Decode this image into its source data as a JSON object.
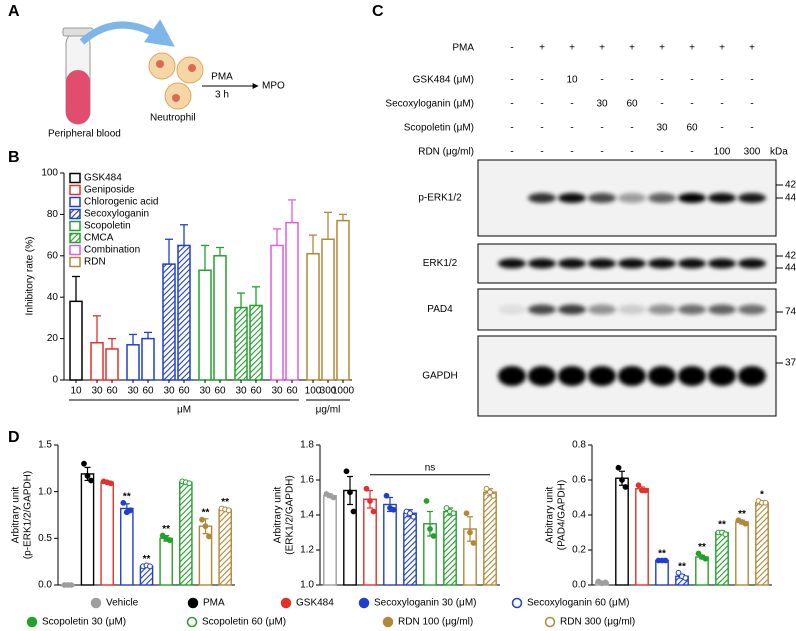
{
  "panel_A": {
    "letter": "A",
    "source": "Peripheral blood",
    "cell": "Neutrophil",
    "stimulus": "PMA",
    "time": "3 h",
    "readout": "MPO"
  },
  "panel_B_letter": "B",
  "panel_D_letter": "D",
  "panel_C": {
    "letter": "C",
    "treatments": [
      {
        "label": "PMA",
        "cells": [
          "-",
          "+",
          "+",
          "+",
          "+",
          "+",
          "+",
          "+",
          "+"
        ]
      },
      {
        "label": "GSK484 (μM)",
        "cells": [
          "-",
          "-",
          "10",
          "-",
          "-",
          "-",
          "-",
          "-",
          "-"
        ]
      },
      {
        "label": "Secoxyloganin (μM)",
        "cells": [
          "-",
          "-",
          "-",
          "30",
          "60",
          "-",
          "-",
          "-",
          "-"
        ]
      },
      {
        "label": "Scopoletin (μM)",
        "cells": [
          "-",
          "-",
          "-",
          "-",
          "-",
          "30",
          "60",
          "-",
          "-"
        ]
      },
      {
        "label": "RDN (μg/ml)",
        "cells": [
          "-",
          "-",
          "-",
          "-",
          "-",
          "-",
          "-",
          "100",
          "300"
        ]
      }
    ],
    "kda": "kDa",
    "blots": [
      {
        "label": "p-ERK1/2",
        "markers": [
          "42",
          "44"
        ]
      },
      {
        "label": "ERK1/2",
        "markers": [
          "42",
          "44"
        ]
      },
      {
        "label": "PAD4",
        "markers": [
          "74"
        ]
      },
      {
        "label": "GAPDH",
        "markers": [
          "37"
        ]
      }
    ]
  },
  "panel_D_legend": [
    {
      "name": "Vehicle",
      "color": "#9e9e9e",
      "marker": "filled"
    },
    {
      "name": "PMA",
      "color": "#000000",
      "marker": "filled"
    },
    {
      "name": "GSK484",
      "color": "#e3302a",
      "marker": "filled"
    },
    {
      "name": "Secoxyloganin 30 (μM)",
      "color": "#1f3fcf",
      "marker": "filled"
    },
    {
      "name": "Secoxyloganin 60 (μM)",
      "color": "#1f3fcf",
      "marker": "open"
    },
    {
      "name": "Scopoletin 30 (μM)",
      "color": "#24a02c",
      "marker": "filled"
    },
    {
      "name": "Scopoletin 60 (μM)",
      "color": "#24a02c",
      "marker": "open"
    },
    {
      "name": "RDN 100 (μg/ml)",
      "color": "#b08838",
      "marker": "filled"
    },
    {
      "name": "RDN 300 (μg/ml)",
      "color": "#b08838",
      "marker": "open"
    }
  ],
  "chart_data": [
    {
      "type": "bar",
      "ylabel": "Inhibitory rate (%)",
      "ylim": [
        0,
        100
      ],
      "yticks": [
        0,
        20,
        40,
        60,
        80,
        100
      ],
      "categories": [
        "10",
        "30",
        "60",
        "30",
        "60",
        "30",
        "60",
        "30",
        "60",
        "30",
        "60",
        "30",
        "60",
        "100",
        "300",
        "1000"
      ],
      "x_units": [
        "μM",
        "μg/ml"
      ],
      "series": [
        {
          "name": "GSK484",
          "color": "#000000",
          "hatch": false,
          "values": [
            38,
            null,
            null,
            null,
            null,
            null,
            null,
            null,
            null,
            null,
            null,
            null,
            null,
            null,
            null,
            null
          ],
          "errors": [
            12,
            null,
            null,
            null,
            null,
            null,
            null,
            null,
            null,
            null,
            null,
            null,
            null,
            null,
            null,
            null
          ]
        },
        {
          "name": "Geniposide",
          "color": "#e3302a",
          "hatch": false,
          "values": [
            null,
            18,
            15,
            null,
            null,
            null,
            null,
            null,
            null,
            null,
            null,
            null,
            null,
            null,
            null,
            null
          ],
          "errors": [
            null,
            13,
            5,
            null,
            null,
            null,
            null,
            null,
            null,
            null,
            null,
            null,
            null,
            null,
            null,
            null
          ]
        },
        {
          "name": "Chlorogenic acid",
          "color": "#1f3fcf",
          "hatch": false,
          "values": [
            null,
            null,
            null,
            17,
            20,
            null,
            null,
            null,
            null,
            null,
            null,
            null,
            null,
            null,
            null,
            null
          ],
          "errors": [
            null,
            null,
            null,
            5,
            3,
            null,
            null,
            null,
            null,
            null,
            null,
            null,
            null,
            null,
            null,
            null
          ]
        },
        {
          "name": "Secoxyloganin",
          "color": "#1f3fcf",
          "hatch": true,
          "values": [
            null,
            null,
            null,
            null,
            null,
            56,
            65,
            null,
            null,
            null,
            null,
            null,
            null,
            null,
            null,
            null
          ],
          "errors": [
            null,
            null,
            null,
            null,
            null,
            12,
            10,
            null,
            null,
            null,
            null,
            null,
            null,
            null,
            null,
            null
          ]
        },
        {
          "name": "Scopoletin",
          "color": "#24a02c",
          "hatch": false,
          "values": [
            null,
            null,
            null,
            null,
            null,
            null,
            null,
            53,
            60,
            null,
            null,
            null,
            null,
            null,
            null,
            null
          ],
          "errors": [
            null,
            null,
            null,
            null,
            null,
            null,
            null,
            12,
            4,
            null,
            null,
            null,
            null,
            null,
            null,
            null
          ]
        },
        {
          "name": "CMCA",
          "color": "#24a02c",
          "hatch": true,
          "values": [
            null,
            null,
            null,
            null,
            null,
            null,
            null,
            null,
            null,
            35,
            36,
            null,
            null,
            null,
            null,
            null
          ],
          "errors": [
            null,
            null,
            null,
            null,
            null,
            null,
            null,
            null,
            null,
            7,
            9,
            null,
            null,
            null,
            null,
            null
          ]
        },
        {
          "name": "Combination",
          "color": "#e05ce0",
          "hatch": false,
          "values": [
            null,
            null,
            null,
            null,
            null,
            null,
            null,
            null,
            null,
            null,
            null,
            65,
            76,
            null,
            null,
            null
          ],
          "errors": [
            null,
            null,
            null,
            null,
            null,
            null,
            null,
            null,
            null,
            null,
            null,
            8,
            11,
            null,
            null,
            null
          ]
        },
        {
          "name": "RDN",
          "color": "#b08838",
          "hatch": false,
          "values": [
            null,
            null,
            null,
            null,
            null,
            null,
            null,
            null,
            null,
            null,
            null,
            null,
            null,
            61,
            68,
            77
          ],
          "errors": [
            null,
            null,
            null,
            null,
            null,
            null,
            null,
            null,
            null,
            null,
            null,
            null,
            null,
            9,
            13,
            3
          ]
        }
      ]
    },
    {
      "type": "bar",
      "ylabel": [
        "Arbitrary unit",
        "(p-ERK1/2/GAPDH)"
      ],
      "ylim": [
        0,
        1.5
      ],
      "yticks": [
        {
          "value": 0,
          "label": "0.0"
        },
        0.5,
        {
          "value": 1,
          "label": "1.0"
        },
        1.5
      ],
      "values": [
        0,
        1.19,
        1.1,
        0.82,
        0.2,
        0.5,
        1.1,
        0.63,
        0.81
      ],
      "errors": [
        0,
        0.07,
        0.01,
        0.05,
        0.01,
        0.03,
        0.01,
        0.08,
        0.01
      ],
      "points": [
        [
          0,
          0,
          0
        ],
        [
          1.3,
          1.17,
          1.12
        ],
        [
          1.11,
          1.1,
          1.09
        ],
        [
          0.88,
          0.78,
          0.8
        ],
        [
          0.2,
          0.21,
          0.2
        ],
        [
          0.53,
          0.5,
          0.48
        ],
        [
          1.11,
          1.1,
          1.09
        ],
        [
          0.7,
          0.63,
          0.52
        ],
        [
          0.82,
          0.81,
          0.8
        ]
      ],
      "significance": [
        null,
        null,
        null,
        "**",
        "**",
        "**",
        null,
        "**",
        "**"
      ]
    },
    {
      "type": "bar",
      "ylabel": [
        "Arbitrary unit",
        "(ERK1/2/GAPDH)"
      ],
      "ylim": [
        1,
        1.8
      ],
      "yticks": [
        {
          "value": 1,
          "label": "1.0"
        },
        1.2,
        1.4,
        1.6,
        1.8
      ],
      "values": [
        1.51,
        1.54,
        1.49,
        1.46,
        1.41,
        1.35,
        1.42,
        1.32,
        1.53
      ],
      "errors": [
        0.01,
        0.08,
        0.05,
        0.04,
        0.02,
        0.07,
        0.02,
        0.07,
        0.02
      ],
      "points": [
        [
          1.52,
          1.51,
          1.5
        ],
        [
          1.65,
          1.53,
          1.42
        ],
        [
          1.55,
          1.48,
          1.42
        ],
        [
          1.51,
          1.44,
          1.43
        ],
        [
          1.42,
          1.41,
          1.39
        ],
        [
          1.48,
          1.32,
          1.28
        ],
        [
          1.44,
          1.42,
          1.41
        ],
        [
          1.41,
          1.3,
          1.24
        ],
        [
          1.55,
          1.53,
          1.51
        ]
      ],
      "bracket": {
        "from": 2,
        "to": 8,
        "label": "ns"
      }
    },
    {
      "type": "bar",
      "ylabel": [
        "Arbitrary unit",
        "(PAD4/GAPDH)"
      ],
      "ylim": [
        0,
        0.8
      ],
      "yticks": [
        {
          "value": 0,
          "label": "0.0"
        },
        0.2,
        0.4,
        0.6,
        0.8
      ],
      "values": [
        0.015,
        0.61,
        0.55,
        0.14,
        0.05,
        0.16,
        0.3,
        0.36,
        0.47
      ],
      "errors": [
        0.005,
        0.04,
        0.01,
        0.003,
        0.01,
        0.01,
        0.01,
        0.01,
        0.01
      ],
      "points": [
        [
          0.02,
          0.01,
          0.015
        ],
        [
          0.67,
          0.6,
          0.56
        ],
        [
          0.57,
          0.54,
          0.54
        ],
        [
          0.14,
          0.14,
          0.14
        ],
        [
          0.07,
          0.05,
          0.04
        ],
        [
          0.18,
          0.16,
          0.15
        ],
        [
          0.3,
          0.3,
          0.29
        ],
        [
          0.37,
          0.36,
          0.35
        ],
        [
          0.48,
          0.47,
          0.47
        ]
      ],
      "significance": [
        null,
        null,
        null,
        "**",
        "**",
        "**",
        "**",
        "**",
        "*"
      ]
    }
  ]
}
